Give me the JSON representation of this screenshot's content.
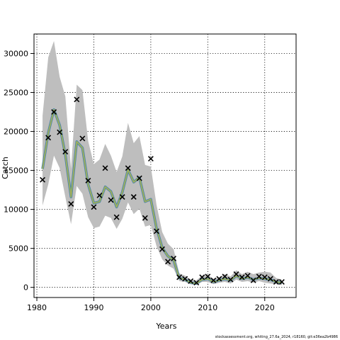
{
  "chart_data": {
    "type": "line",
    "xlabel": "Years",
    "ylabel": "Catch",
    "xlim": [
      1979.5,
      2025.5
    ],
    "ylim": [
      -1300,
      32500
    ],
    "xticks": [
      1980,
      1990,
      2000,
      2010,
      2020
    ],
    "yticks": [
      0,
      5000,
      10000,
      15000,
      20000,
      25000,
      30000
    ],
    "grid": true,
    "footer": "stockassessment.org, whiting_27.6a_2024, r18160, git:e36ea2b4986",
    "colors": {
      "band": "#bebebe",
      "fit_outer": "#4a78b8",
      "fit_mid": "#5aa08a",
      "fit_inner": "#a3ad5c",
      "observed": "#000000",
      "grid": "#000000"
    },
    "series": [
      {
        "type": "line",
        "x": [
          1981,
          1982,
          1983,
          1984,
          1985,
          1986,
          1987,
          1988,
          1989,
          1990,
          1991,
          1992,
          1993,
          1994,
          1995,
          1996,
          1997,
          1998,
          1999,
          2000,
          2001,
          2002,
          2003,
          2004,
          2005,
          2006,
          2007,
          2008,
          2009,
          2010,
          2011,
          2012,
          2013,
          2014,
          2015,
          2016,
          2017,
          2018,
          2019,
          2020,
          2021,
          2022,
          2023
        ],
        "y": [
          15200,
          19800,
          22800,
          20800,
          17000,
          11600,
          18700,
          17900,
          13200,
          10800,
          11000,
          12900,
          12300,
          10300,
          12200,
          15100,
          13500,
          14100,
          11000,
          11300,
          7600,
          5100,
          4000,
          3500,
          1200,
          1000,
          600,
          500,
          1000,
          1100,
          700,
          900,
          1100,
          900,
          1500,
          1100,
          1300,
          1000,
          1200,
          1100,
          1000,
          700,
          600
        ]
      },
      {
        "type": "band",
        "upper": [
          22000,
          29500,
          31600,
          27000,
          24500,
          15200,
          26000,
          25300,
          18800,
          15800,
          16400,
          18400,
          16900,
          14800,
          16800,
          21100,
          18500,
          19400,
          15700,
          15500,
          10600,
          7100,
          5600,
          4900,
          1800,
          1500,
          1000,
          900,
          1500,
          1600,
          1100,
          1300,
          1700,
          1400,
          2200,
          1700,
          2000,
          1700,
          1900,
          2000,
          1900,
          1200,
          1000
        ],
        "lower": [
          10500,
          13200,
          16900,
          15300,
          11600,
          8100,
          13000,
          12000,
          9000,
          7600,
          7800,
          9200,
          8900,
          7500,
          8800,
          10900,
          9400,
          10100,
          7800,
          8000,
          5300,
          3600,
          2800,
          2400,
          800,
          700,
          400,
          300,
          700,
          700,
          400,
          600,
          700,
          500,
          1000,
          700,
          800,
          600,
          800,
          600,
          500,
          400,
          300
        ]
      },
      {
        "type": "scatter",
        "x": [
          1981,
          1982,
          1983,
          1984,
          1985,
          1986,
          1987,
          1988,
          1989,
          1990,
          1991,
          1992,
          1993,
          1994,
          1995,
          1996,
          1997,
          1998,
          1999,
          2000,
          2001,
          2002,
          2003,
          2004,
          2005,
          2006,
          2007,
          2008,
          2009,
          2010,
          2011,
          2012,
          2013,
          2014,
          2015,
          2016,
          2017,
          2018,
          2019,
          2020,
          2021,
          2022,
          2023
        ],
        "y": [
          13800,
          19200,
          22500,
          19900,
          17400,
          10700,
          24100,
          19100,
          13700,
          10300,
          11800,
          15300,
          11200,
          9000,
          11600,
          15300,
          11600,
          14000,
          8900,
          16500,
          7200,
          4900,
          3300,
          3700,
          1300,
          1100,
          800,
          600,
          1300,
          1400,
          900,
          1100,
          1400,
          1000,
          1700,
          1300,
          1500,
          900,
          1400,
          1300,
          1100,
          700,
          700
        ]
      }
    ]
  }
}
